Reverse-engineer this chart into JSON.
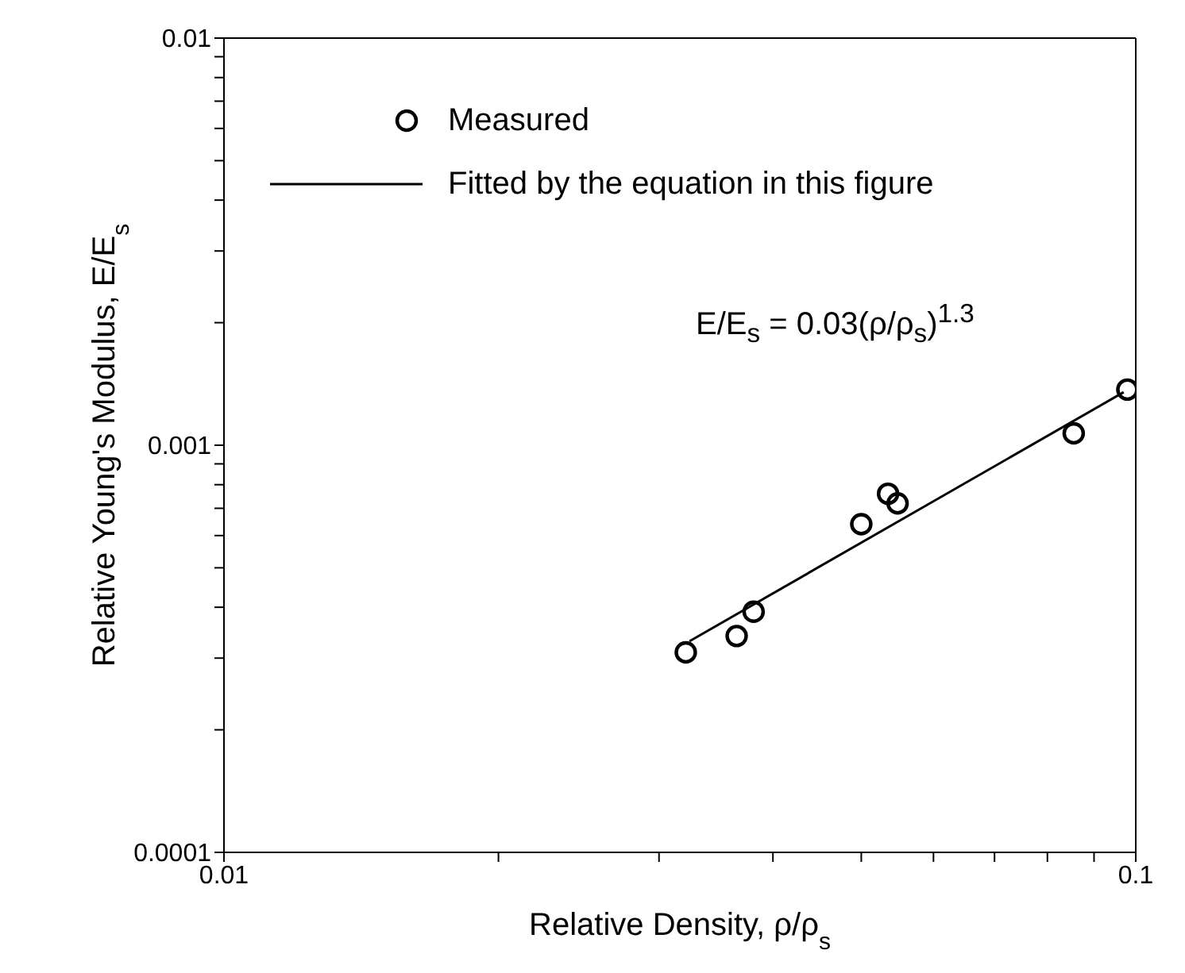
{
  "chart_data": {
    "type": "scatter",
    "marker": "circle",
    "xlabel": "Relative Density, ρ/ρ$_{s}$",
    "ylabel": "Relative Young's Modulus, E/E$_{s}$",
    "log": "xy",
    "grid": false,
    "legend": "top left",
    "xlim": [
      0.01,
      0.1
    ],
    "xticks": [
      0.01,
      {
        "value": 0.02,
        "label": null
      },
      {
        "value": 0.03,
        "label": null
      },
      {
        "value": 0.04,
        "label": null
      },
      {
        "value": 0.05,
        "label": null
      },
      {
        "value": 0.06,
        "label": null
      },
      {
        "value": 0.07,
        "label": null
      },
      {
        "value": 0.08,
        "label": null
      },
      {
        "value": 0.09,
        "label": null
      },
      0.1
    ],
    "ylim": [
      0.0001,
      0.01
    ],
    "yticks": [
      0.0001,
      {
        "value": 0.0002,
        "label": null
      },
      {
        "value": 0.0003,
        "label": null
      },
      {
        "value": 0.0004,
        "label": null
      },
      {
        "value": 0.0005,
        "label": null
      },
      {
        "value": 0.0006,
        "label": null
      },
      {
        "value": 0.0007,
        "label": null
      },
      {
        "value": 0.0008,
        "label": null
      },
      {
        "value": 0.0009,
        "label": null
      },
      0.001,
      {
        "value": 0.002,
        "label": null
      },
      {
        "value": 0.003,
        "label": null
      },
      {
        "value": 0.004,
        "label": null
      },
      {
        "value": 0.005,
        "label": null
      },
      {
        "value": 0.006,
        "label": null
      },
      {
        "value": 0.007,
        "label": null
      },
      {
        "value": 0.008,
        "label": null
      },
      {
        "value": 0.009,
        "label": null
      },
      0.01
    ],
    "series": [
      {
        "name": "Measured",
        "type": "scatter",
        "color": "#000000",
        "x": [
          0.0321,
          0.0365,
          0.0381,
          0.05,
          0.0535,
          0.0548,
          0.0855,
          0.0979
        ],
        "values": [
          0.00031,
          0.00034,
          0.00039,
          0.00064,
          0.00076,
          0.00072,
          0.00107,
          0.00137
        ]
      },
      {
        "name": "Fitted by the equation in this figure",
        "type": "line",
        "marker": "none",
        "line_style": "solid",
        "color": "#000000",
        "x": [
          0.0324,
          0.097
        ],
        "values": [
          0.00033,
          0.00135
        ]
      }
    ],
    "annotations": [
      "E/E$_{s}$ = 0.03(ρ/ρ$_{s}$)$^{1.3}$"
    ]
  }
}
